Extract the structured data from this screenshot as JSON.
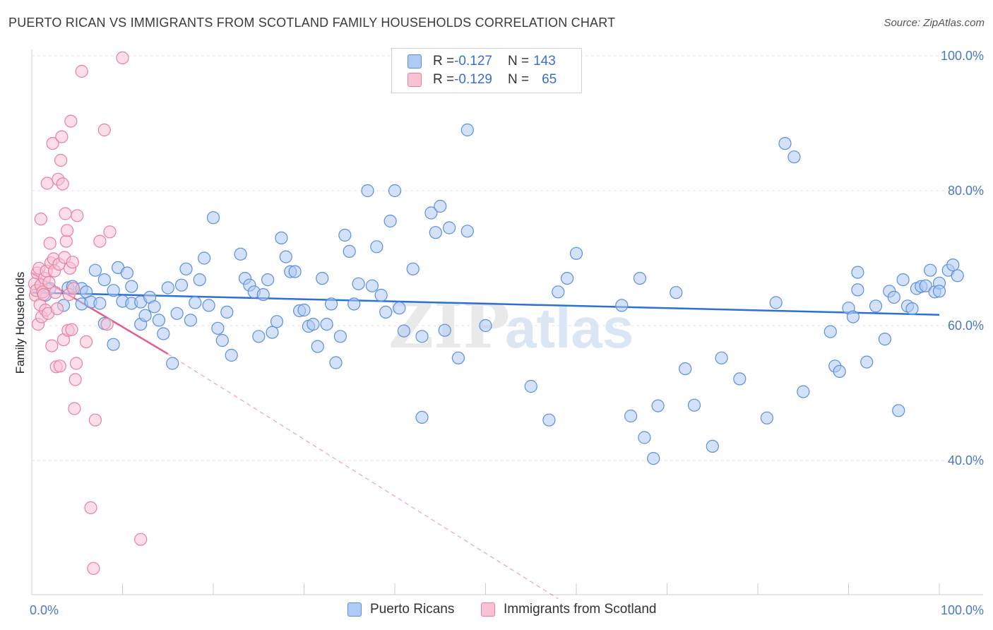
{
  "header": {
    "title": "PUERTO RICAN VS IMMIGRANTS FROM SCOTLAND FAMILY HOUSEHOLDS CORRELATION CHART",
    "source": "Source: ZipAtlas.com"
  },
  "watermark": {
    "part1": "ZIP",
    "part2": "atlas"
  },
  "legend_top": {
    "rows": [
      {
        "r_label": "R = ",
        "r_value": "-0.127",
        "n_label": "N = ",
        "n_value": "143"
      },
      {
        "r_label": "R = ",
        "r_value": "-0.129",
        "n_label": "N = ",
        "n_value": "65"
      }
    ]
  },
  "colors": {
    "series1_fill": "#aecbf3",
    "series1_stroke": "#5b8ee0",
    "series1_line": "#2e6fd6",
    "series2_fill": "#f7c3d3",
    "series2_stroke": "#e87fa0",
    "series2_line": "#e0608c",
    "grid": "#e3e3e3",
    "tick_text": "#4a78c2"
  },
  "chart_data": {
    "type": "scatter",
    "title": "PUERTO RICAN VS IMMIGRANTS FROM SCOTLAND FAMILY HOUSEHOLDS CORRELATION CHART",
    "xlabel": "",
    "ylabel": "Family Households",
    "xlim": [
      0,
      100
    ],
    "ylim": [
      20,
      102
    ],
    "y_ticks": [
      40,
      60,
      80,
      100
    ],
    "y_tick_labels": [
      "40.0%",
      "60.0%",
      "80.0%",
      "100.0%"
    ],
    "x_tick_labels": [
      "0.0%",
      "100.0%"
    ],
    "grid": "horizontal dashed",
    "legend_placement": "bottom",
    "series": [
      {
        "name": "Puerto Ricans",
        "legend_label": "Puerto Ricans",
        "trend": {
          "x0": 0,
          "y0": 64.9,
          "x1": 100,
          "y1": 61.6
        },
        "points": [
          [
            1,
            66
          ],
          [
            1.5,
            64.5
          ],
          [
            2,
            65.5
          ],
          [
            3.5,
            63
          ],
          [
            4,
            65.6
          ],
          [
            4.5,
            65.8
          ],
          [
            5.5,
            65.5
          ],
          [
            5.5,
            63.2
          ],
          [
            6,
            65
          ],
          [
            6.5,
            63.5
          ],
          [
            7,
            68.2
          ],
          [
            7.5,
            63.3
          ],
          [
            8,
            60.3
          ],
          [
            8,
            66.8
          ],
          [
            9,
            65.2
          ],
          [
            9,
            57.2
          ],
          [
            9.5,
            68.6
          ],
          [
            10,
            63.6
          ],
          [
            10.5,
            67.8
          ],
          [
            11,
            65.8
          ],
          [
            11,
            63.3
          ],
          [
            12,
            63.5
          ],
          [
            12,
            60.2
          ],
          [
            12.5,
            61.5
          ],
          [
            13,
            64.2
          ],
          [
            13.5,
            62.8
          ],
          [
            14,
            60.8
          ],
          [
            14.5,
            58.8
          ],
          [
            15,
            65.6
          ],
          [
            15.5,
            54.4
          ],
          [
            16,
            61.8
          ],
          [
            16.5,
            66
          ],
          [
            17,
            68.4
          ],
          [
            17.5,
            60.8
          ],
          [
            18,
            63.4
          ],
          [
            18.5,
            66.8
          ],
          [
            19,
            70
          ],
          [
            19.5,
            63
          ],
          [
            20,
            76
          ],
          [
            20.5,
            59.6
          ],
          [
            21,
            57.8
          ],
          [
            21.5,
            62
          ],
          [
            22,
            55.6
          ],
          [
            23,
            70.6
          ],
          [
            23.5,
            67
          ],
          [
            24,
            66
          ],
          [
            24.5,
            65
          ],
          [
            25,
            58.4
          ],
          [
            25.5,
            64.6
          ],
          [
            26,
            66.8
          ],
          [
            26.5,
            59
          ],
          [
            27,
            60.6
          ],
          [
            27.5,
            73
          ],
          [
            28,
            70.2
          ],
          [
            28.5,
            68
          ],
          [
            29,
            68
          ],
          [
            29.5,
            62.2
          ],
          [
            30,
            62.3
          ],
          [
            30.5,
            59.9
          ],
          [
            31,
            60.2
          ],
          [
            31.5,
            56.9
          ],
          [
            32,
            67
          ],
          [
            32.5,
            60.2
          ],
          [
            33,
            63.2
          ],
          [
            33.5,
            54.5
          ],
          [
            34,
            58.4
          ],
          [
            34.5,
            73.4
          ],
          [
            35,
            71
          ],
          [
            35.5,
            63.2
          ],
          [
            36,
            66.2
          ],
          [
            37,
            80
          ],
          [
            37.5,
            65.9
          ],
          [
            38,
            71.7
          ],
          [
            38.5,
            64.5
          ],
          [
            39,
            62
          ],
          [
            39.5,
            75.5
          ],
          [
            40,
            80
          ],
          [
            40.5,
            62.6
          ],
          [
            41,
            59.2
          ],
          [
            42,
            68.4
          ],
          [
            43,
            46.4
          ],
          [
            43,
            58.4
          ],
          [
            44,
            76.7
          ],
          [
            44.5,
            73.8
          ],
          [
            45,
            77.7
          ],
          [
            45.5,
            59.3
          ],
          [
            46,
            74.5
          ],
          [
            47,
            55.2
          ],
          [
            48,
            74
          ],
          [
            48,
            89
          ],
          [
            50,
            60
          ],
          [
            55,
            51
          ],
          [
            57,
            46
          ],
          [
            58,
            65
          ],
          [
            59,
            67
          ],
          [
            60,
            70.7
          ],
          [
            65,
            63
          ],
          [
            66,
            46.6
          ],
          [
            67,
            67
          ],
          [
            67.5,
            43.4
          ],
          [
            68.5,
            40.3
          ],
          [
            69,
            48.1
          ],
          [
            71,
            64.9
          ],
          [
            72,
            53.6
          ],
          [
            73,
            48.2
          ],
          [
            75,
            42.1
          ],
          [
            76,
            55.2
          ],
          [
            78,
            52.1
          ],
          [
            81,
            46.3
          ],
          [
            82,
            63.4
          ],
          [
            83,
            87
          ],
          [
            84,
            85
          ],
          [
            85,
            50.2
          ],
          [
            88,
            59.1
          ],
          [
            88.5,
            54
          ],
          [
            89,
            53.2
          ],
          [
            90,
            62.6
          ],
          [
            90.5,
            61.3
          ],
          [
            91,
            67.9
          ],
          [
            91,
            65.3
          ],
          [
            92,
            54.6
          ],
          [
            93,
            62.9
          ],
          [
            94,
            58
          ],
          [
            94.5,
            65.1
          ],
          [
            95,
            64.2
          ],
          [
            95.5,
            47.4
          ],
          [
            96,
            66.8
          ],
          [
            96.5,
            62.9
          ],
          [
            97,
            62.5
          ],
          [
            97.5,
            65.5
          ],
          [
            98,
            65.8
          ],
          [
            98.5,
            65.9
          ],
          [
            99,
            68.2
          ],
          [
            99.5,
            65
          ],
          [
            100,
            66.3
          ],
          [
            100,
            65.1
          ],
          [
            101,
            68.2
          ],
          [
            101.5,
            69
          ],
          [
            102,
            67.4
          ]
        ]
      },
      {
        "name": "Immigrants from Scotland",
        "legend_label": "Immigrants from Scotland",
        "trend": {
          "x0": 0,
          "y0": 67.8,
          "x1": 15,
          "y1": 55.8,
          "dash_to_x": 58,
          "dash_to_y": 19.5
        },
        "points": [
          [
            0.3,
            66.2
          ],
          [
            0.4,
            64.5
          ],
          [
            0.5,
            65.2
          ],
          [
            0.6,
            67.8
          ],
          [
            0.7,
            60.2
          ],
          [
            0.8,
            68.5
          ],
          [
            0.9,
            63.1
          ],
          [
            1,
            75.8
          ],
          [
            1,
            66
          ],
          [
            1.1,
            61.3
          ],
          [
            1.2,
            65
          ],
          [
            1.3,
            64.6
          ],
          [
            1.4,
            67
          ],
          [
            1.5,
            62.3
          ],
          [
            1.6,
            68.1
          ],
          [
            1.7,
            81.1
          ],
          [
            1.8,
            61.8
          ],
          [
            1.9,
            66.4
          ],
          [
            2,
            72.2
          ],
          [
            2.1,
            69.3
          ],
          [
            2.2,
            57
          ],
          [
            2.3,
            87
          ],
          [
            2.4,
            69.9
          ],
          [
            2.5,
            68.1
          ],
          [
            2.6,
            64.9
          ],
          [
            2.7,
            53.9
          ],
          [
            2.8,
            62.5
          ],
          [
            2.9,
            81.7
          ],
          [
            3,
            69.1
          ],
          [
            3.1,
            54
          ],
          [
            3.2,
            84.5
          ],
          [
            3.3,
            88
          ],
          [
            3.4,
            81
          ],
          [
            3.5,
            57.9
          ],
          [
            3.6,
            70.1
          ],
          [
            3.7,
            76.6
          ],
          [
            3.8,
            72.5
          ],
          [
            3.9,
            74.1
          ],
          [
            4,
            59.3
          ],
          [
            4.1,
            64.6
          ],
          [
            4.2,
            68.5
          ],
          [
            4.3,
            90.3
          ],
          [
            4.4,
            59.4
          ],
          [
            4.5,
            69.4
          ],
          [
            4.6,
            65.5
          ],
          [
            4.7,
            47.7
          ],
          [
            4.8,
            52
          ],
          [
            4.9,
            54.4
          ],
          [
            5,
            76.3
          ],
          [
            5.5,
            97.7
          ],
          [
            6,
            57.6
          ],
          [
            6.5,
            33
          ],
          [
            7,
            46
          ],
          [
            7.5,
            72.5
          ],
          [
            8,
            89
          ],
          [
            8.3,
            60.2
          ],
          [
            8.6,
            73.9
          ],
          [
            10,
            99.7
          ],
          [
            12,
            28.3
          ],
          [
            6.8,
            24
          ]
        ]
      }
    ]
  },
  "bottom_legend": {
    "items": [
      {
        "label": "Puerto Ricans"
      },
      {
        "label": "Immigrants from Scotland"
      }
    ]
  }
}
